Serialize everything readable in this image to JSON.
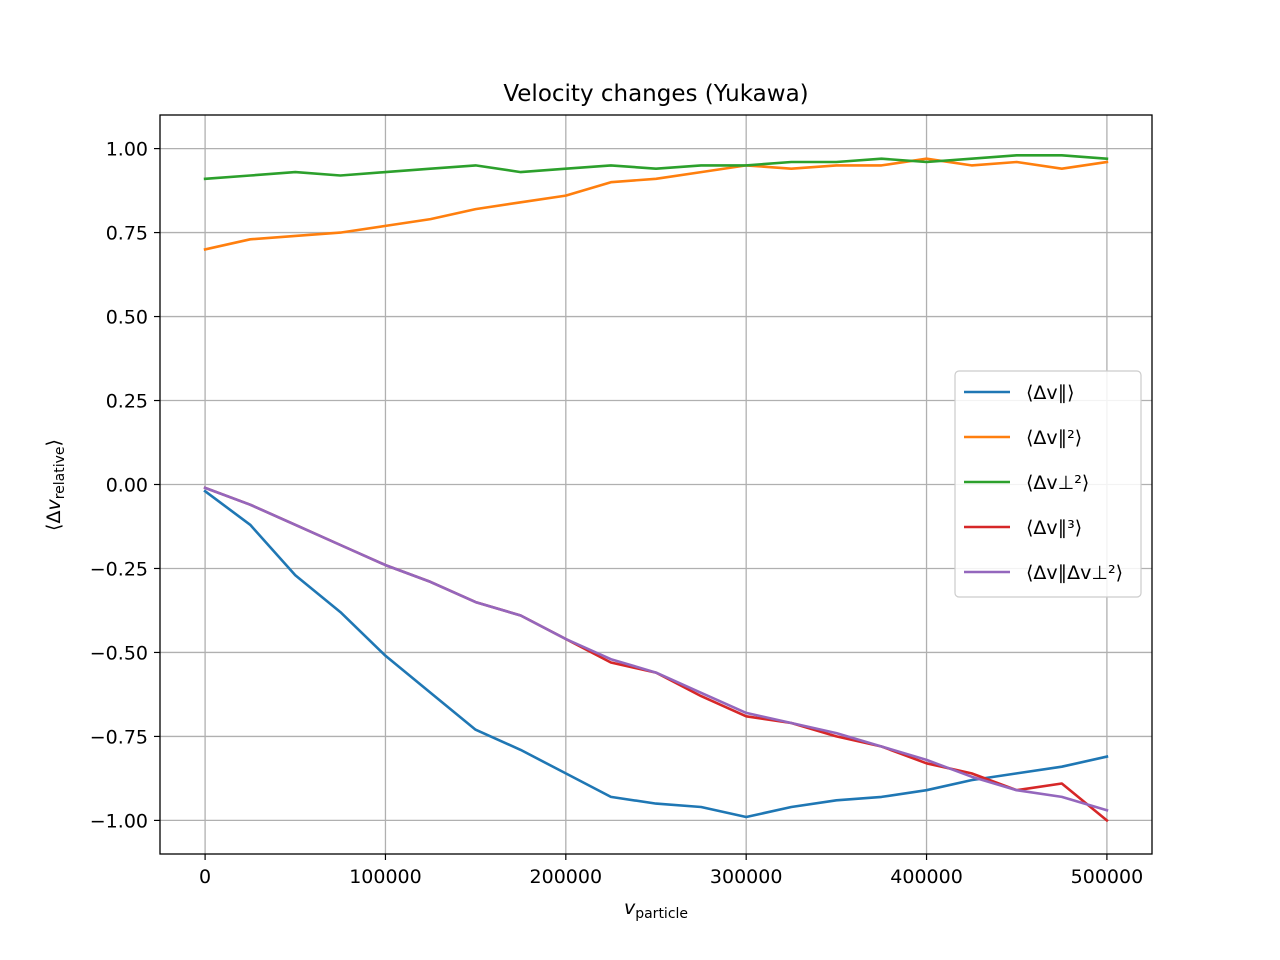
{
  "chart_data": {
    "type": "line",
    "title": "Velocity changes (Yukawa)",
    "xlabel": "v_particle",
    "ylabel": "⟨Δv_relative⟩",
    "xlim": [
      -25000,
      525000
    ],
    "ylim": [
      -1.1,
      1.1
    ],
    "grid": true,
    "legend_position": "center-right",
    "x_ticks": [
      0,
      100000,
      200000,
      300000,
      400000,
      500000
    ],
    "x_tick_labels": [
      "0",
      "100000",
      "200000",
      "300000",
      "400000",
      "500000"
    ],
    "y_ticks": [
      -1.0,
      -0.75,
      -0.5,
      -0.25,
      0.0,
      0.25,
      0.5,
      0.75,
      1.0
    ],
    "y_tick_labels": [
      "−1.00",
      "−0.75",
      "−0.50",
      "−0.25",
      "0.00",
      "0.25",
      "0.50",
      "0.75",
      "1.00"
    ],
    "x": [
      0,
      25000,
      50000,
      75000,
      100000,
      125000,
      150000,
      175000,
      200000,
      225000,
      250000,
      275000,
      300000,
      325000,
      350000,
      375000,
      400000,
      425000,
      450000,
      475000,
      500000
    ],
    "series": [
      {
        "name": "⟨Δv∥⟩",
        "color": "#1f77b4",
        "values": [
          -0.02,
          -0.12,
          -0.27,
          -0.38,
          -0.51,
          -0.62,
          -0.73,
          -0.79,
          -0.86,
          -0.93,
          -0.95,
          -0.96,
          -0.99,
          -0.96,
          -0.94,
          -0.93,
          -0.91,
          -0.88,
          -0.86,
          -0.84,
          -0.81
        ]
      },
      {
        "name": "⟨Δv∥²⟩",
        "color": "#ff7f0e",
        "values": [
          0.7,
          0.73,
          0.74,
          0.75,
          0.77,
          0.79,
          0.82,
          0.84,
          0.86,
          0.9,
          0.91,
          0.93,
          0.95,
          0.94,
          0.95,
          0.95,
          0.97,
          0.95,
          0.96,
          0.94,
          0.96
        ]
      },
      {
        "name": "⟨Δv⊥²⟩",
        "color": "#2ca02c",
        "values": [
          0.91,
          0.92,
          0.93,
          0.92,
          0.93,
          0.94,
          0.95,
          0.93,
          0.94,
          0.95,
          0.94,
          0.95,
          0.95,
          0.96,
          0.96,
          0.97,
          0.96,
          0.97,
          0.98,
          0.98,
          0.97
        ]
      },
      {
        "name": "⟨Δv∥³⟩",
        "color": "#d62728",
        "values": [
          -0.01,
          -0.06,
          -0.12,
          -0.18,
          -0.24,
          -0.29,
          -0.35,
          -0.39,
          -0.46,
          -0.53,
          -0.56,
          -0.63,
          -0.69,
          -0.71,
          -0.75,
          -0.78,
          -0.83,
          -0.86,
          -0.91,
          -0.89,
          -1.0
        ]
      },
      {
        "name": "⟨Δv∥Δv⊥²⟩",
        "color": "#9467bd",
        "values": [
          -0.01,
          -0.06,
          -0.12,
          -0.18,
          -0.24,
          -0.29,
          -0.35,
          -0.39,
          -0.46,
          -0.52,
          -0.56,
          -0.62,
          -0.68,
          -0.71,
          -0.74,
          -0.78,
          -0.82,
          -0.87,
          -0.91,
          -0.93,
          -0.97
        ]
      }
    ]
  }
}
